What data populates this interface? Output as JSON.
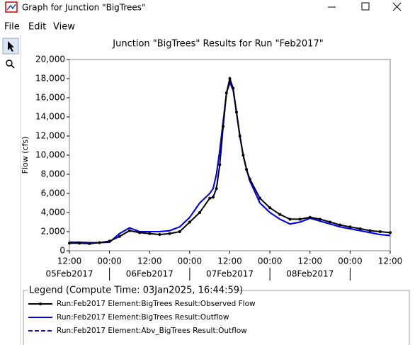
{
  "window": {
    "title": "Graph for Junction \"BigTrees\"",
    "menu": [
      "File",
      "Edit",
      "View"
    ]
  },
  "chart_data": {
    "type": "line",
    "title": "Junction \"BigTrees\" Results for Run \"Feb2017\"",
    "y_label": "Flow (cfs)",
    "legend_title": "Legend (Compute Time: 03Jan2025, 16:44:59)",
    "x": [
      "2017-02-05 12:00",
      "2017-02-05 15:00",
      "2017-02-05 18:00",
      "2017-02-05 21:00",
      "2017-02-06 00:00",
      "2017-02-06 03:00",
      "2017-02-06 06:00",
      "2017-02-06 09:00",
      "2017-02-06 12:00",
      "2017-02-06 15:00",
      "2017-02-06 18:00",
      "2017-02-06 21:00",
      "2017-02-07 00:00",
      "2017-02-07 03:00",
      "2017-02-07 06:00",
      "2017-02-07 07:00",
      "2017-02-07 08:00",
      "2017-02-07 09:00",
      "2017-02-07 10:00",
      "2017-02-07 11:00",
      "2017-02-07 12:00",
      "2017-02-07 13:00",
      "2017-02-07 14:00",
      "2017-02-07 15:00",
      "2017-02-07 16:00",
      "2017-02-07 17:00",
      "2017-02-07 18:00",
      "2017-02-07 21:00",
      "2017-02-08 00:00",
      "2017-02-08 03:00",
      "2017-02-08 06:00",
      "2017-02-08 09:00",
      "2017-02-08 12:00",
      "2017-02-08 15:00",
      "2017-02-08 18:00",
      "2017-02-08 21:00",
      "2017-02-09 00:00",
      "2017-02-09 03:00",
      "2017-02-09 06:00",
      "2017-02-09 09:00",
      "2017-02-09 12:00"
    ],
    "series": [
      {
        "name": "Run:Feb2017 Element:BigTrees Result:Observed Flow",
        "color": "#000000",
        "style": "solid",
        "markers": true,
        "values": [
          800,
          800,
          750,
          850,
          1000,
          1500,
          2100,
          1900,
          1800,
          1700,
          1800,
          2000,
          3000,
          4000,
          5500,
          5600,
          6500,
          9000,
          13000,
          16500,
          18000,
          17000,
          14500,
          12000,
          10000,
          8500,
          7500,
          5500,
          4500,
          3800,
          3300,
          3300,
          3500,
          3300,
          3000,
          2700,
          2500,
          2300,
          2100,
          2000,
          1900
        ]
      },
      {
        "name": "Run:Feb2017 Element:BigTrees Result:Outflow",
        "color": "#0000ff",
        "style": "solid",
        "markers": false,
        "values": [
          900,
          900,
          850,
          850,
          900,
          1800,
          2400,
          2000,
          2000,
          2000,
          2100,
          2500,
          3500,
          5000,
          6000,
          6500,
          8000,
          10500,
          13500,
          16500,
          17600,
          16800,
          14500,
          12000,
          10000,
          8500,
          7300,
          5000,
          4000,
          3300,
          2800,
          3000,
          3400,
          3100,
          2800,
          2500,
          2300,
          2100,
          1900,
          1700,
          1600
        ]
      },
      {
        "name": "Run:Feb2017 Element:Abv_BigTrees Result:Outflow",
        "color": "#1a1aa6",
        "style": "dashed",
        "markers": false,
        "values": [
          900,
          900,
          850,
          850,
          900,
          1800,
          2400,
          2000,
          2000,
          2000,
          2100,
          2500,
          3500,
          5000,
          6000,
          6500,
          8000,
          10500,
          13500,
          16500,
          17600,
          16800,
          14500,
          12000,
          10000,
          8500,
          7300,
          5000,
          4000,
          3300,
          2800,
          3000,
          3400,
          3100,
          2800,
          2500,
          2300,
          2100,
          1900,
          1700,
          1600
        ]
      }
    ],
    "xlim": [
      "2017-02-05 12:00",
      "2017-02-09 12:00"
    ],
    "xticks": [
      {
        "value": "2017-02-05 12:00",
        "label": "12:00"
      },
      {
        "value": "2017-02-06 00:00",
        "label": "00:00"
      },
      {
        "value": "2017-02-06 12:00",
        "label": "12:00"
      },
      {
        "value": "2017-02-07 00:00",
        "label": "00:00"
      },
      {
        "value": "2017-02-07 12:00",
        "label": "12:00"
      },
      {
        "value": "2017-02-08 00:00",
        "label": "00:00"
      },
      {
        "value": "2017-02-08 12:00",
        "label": "12:00"
      },
      {
        "value": "2017-02-09 00:00",
        "label": "00:00"
      },
      {
        "value": "2017-02-09 12:00",
        "label": "12:00"
      }
    ],
    "xticks2": [
      {
        "value": "2017-02-05 12:00",
        "label": "05Feb2017"
      },
      {
        "value": "2017-02-06 12:00",
        "label": "06Feb2017"
      },
      {
        "value": "2017-02-07 12:00",
        "label": "07Feb2017"
      },
      {
        "value": "2017-02-08 12:00",
        "label": "08Feb2017"
      }
    ],
    "ylim": [
      0,
      20000
    ],
    "yticks": [
      0,
      {
        "value": 2000,
        "label": "2,000"
      },
      {
        "value": 4000,
        "label": "4,000"
      },
      {
        "value": 6000,
        "label": "6,000"
      },
      {
        "value": 8000,
        "label": "8,000"
      },
      {
        "value": 10000,
        "label": "10,000"
      },
      {
        "value": 12000,
        "label": "12,000"
      },
      {
        "value": 14000,
        "label": "14,000"
      },
      {
        "value": 16000,
        "label": "16,000"
      },
      {
        "value": 18000,
        "label": "18,000"
      },
      {
        "value": 20000,
        "label": "20,000"
      }
    ],
    "grid": false
  }
}
